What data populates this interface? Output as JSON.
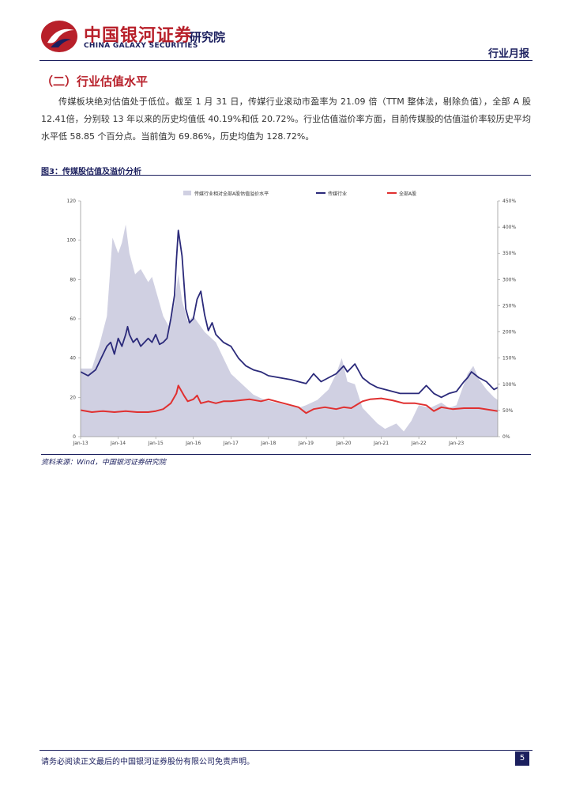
{
  "header": {
    "brand_cn": "中国银河证券",
    "brand_en": "CHINA GALAXY SECURITIES",
    "institute": "研究院",
    "report_type": "行业月报"
  },
  "section": {
    "title": "（二）行业估值水平",
    "paragraph": "传媒板块绝对估值处于低位。截至 1 月 31 日，传媒行业滚动市盈率为 21.09 倍（TTM 整体法，剔除负值），全部 A 股 12.41倍，分别较 13 年以来的历史均值低 40.19%和低 20.72%。行业估值溢价率方面，目前传媒股的估值溢价率较历史平均水平低 58.85 个百分点。当前值为 69.86%，历史均值为 128.72%。"
  },
  "figure": {
    "title": "图3：传媒股估值及溢价分析",
    "source": "资料来源：Wind，中国银河证券研究院"
  },
  "chart_data": {
    "type": "line",
    "title": "",
    "legend": [
      "传媒行业相对全部A股估值溢价水平",
      "传媒行业",
      "全部A股"
    ],
    "x_tick_labels": [
      "Jan-13",
      "Jan-14",
      "Jan-15",
      "Jan-16",
      "Jan-17",
      "Jan-18",
      "Jan-19",
      "Jan-20",
      "Jan-21",
      "Jan-22",
      "Jan-23"
    ],
    "left_axis": {
      "range": [
        0,
        120
      ],
      "ticks": [
        "0",
        "20",
        "40",
        "60",
        "80",
        "100",
        "120"
      ]
    },
    "right_axis": {
      "range": [
        0,
        450
      ],
      "ticks": [
        "0%",
        "50%",
        "100%",
        "150%",
        "200%",
        "250%",
        "300%",
        "350%",
        "400%",
        "450%"
      ]
    },
    "x_range": [
      2013.0,
      2024.1
    ],
    "series": [
      {
        "name": "传媒行业相对全部A股估值溢价水平",
        "axis": "right",
        "style": "area",
        "color": "#d0d0e2",
        "points": [
          [
            2013.0,
            130
          ],
          [
            2013.3,
            130
          ],
          [
            2013.5,
            175
          ],
          [
            2013.7,
            230
          ],
          [
            2013.85,
            380
          ],
          [
            2014.0,
            350
          ],
          [
            2014.1,
            370
          ],
          [
            2014.2,
            405
          ],
          [
            2014.3,
            350
          ],
          [
            2014.45,
            310
          ],
          [
            2014.6,
            320
          ],
          [
            2014.8,
            295
          ],
          [
            2014.9,
            305
          ],
          [
            2015.0,
            280
          ],
          [
            2015.2,
            230
          ],
          [
            2015.35,
            210
          ],
          [
            2015.5,
            255
          ],
          [
            2015.6,
            310
          ],
          [
            2015.7,
            260
          ],
          [
            2015.85,
            220
          ],
          [
            2016.0,
            230
          ],
          [
            2016.3,
            200
          ],
          [
            2016.6,
            180
          ],
          [
            2016.8,
            150
          ],
          [
            2017.0,
            120
          ],
          [
            2017.3,
            100
          ],
          [
            2017.6,
            80
          ],
          [
            2017.9,
            70
          ],
          [
            2018.2,
            65
          ],
          [
            2018.5,
            60
          ],
          [
            2018.8,
            55
          ],
          [
            2019.0,
            60
          ],
          [
            2019.3,
            70
          ],
          [
            2019.6,
            90
          ],
          [
            2019.8,
            120
          ],
          [
            2019.95,
            150
          ],
          [
            2020.1,
            105
          ],
          [
            2020.3,
            100
          ],
          [
            2020.5,
            55
          ],
          [
            2020.7,
            40
          ],
          [
            2020.9,
            25
          ],
          [
            2021.1,
            15
          ],
          [
            2021.4,
            25
          ],
          [
            2021.6,
            10
          ],
          [
            2021.8,
            30
          ],
          [
            2022.0,
            60
          ],
          [
            2022.3,
            55
          ],
          [
            2022.6,
            65
          ],
          [
            2022.8,
            55
          ],
          [
            2023.0,
            60
          ],
          [
            2023.15,
            90
          ],
          [
            2023.3,
            120
          ],
          [
            2023.45,
            135
          ],
          [
            2023.6,
            110
          ],
          [
            2023.8,
            90
          ],
          [
            2024.0,
            75
          ],
          [
            2024.1,
            70
          ]
        ]
      },
      {
        "name": "传媒行业",
        "axis": "left",
        "style": "line",
        "color": "#2b2a7a",
        "points": [
          [
            2013.0,
            33
          ],
          [
            2013.2,
            31
          ],
          [
            2013.4,
            34
          ],
          [
            2013.5,
            38
          ],
          [
            2013.6,
            42
          ],
          [
            2013.7,
            46
          ],
          [
            2013.8,
            48
          ],
          [
            2013.9,
            42
          ],
          [
            2014.0,
            50
          ],
          [
            2014.1,
            46
          ],
          [
            2014.2,
            52
          ],
          [
            2014.25,
            56
          ],
          [
            2014.3,
            52
          ],
          [
            2014.4,
            48
          ],
          [
            2014.5,
            50
          ],
          [
            2014.6,
            46
          ],
          [
            2014.7,
            48
          ],
          [
            2014.8,
            50
          ],
          [
            2014.9,
            48
          ],
          [
            2015.0,
            52
          ],
          [
            2015.1,
            47
          ],
          [
            2015.2,
            48
          ],
          [
            2015.3,
            50
          ],
          [
            2015.4,
            60
          ],
          [
            2015.5,
            72
          ],
          [
            2015.55,
            90
          ],
          [
            2015.6,
            105
          ],
          [
            2015.7,
            92
          ],
          [
            2015.8,
            65
          ],
          [
            2015.9,
            58
          ],
          [
            2016.0,
            60
          ],
          [
            2016.1,
            70
          ],
          [
            2016.2,
            74
          ],
          [
            2016.3,
            62
          ],
          [
            2016.4,
            54
          ],
          [
            2016.5,
            58
          ],
          [
            2016.6,
            52
          ],
          [
            2016.8,
            48
          ],
          [
            2017.0,
            46
          ],
          [
            2017.2,
            40
          ],
          [
            2017.4,
            36
          ],
          [
            2017.6,
            34
          ],
          [
            2017.8,
            33
          ],
          [
            2018.0,
            31
          ],
          [
            2018.3,
            30
          ],
          [
            2018.6,
            29
          ],
          [
            2018.8,
            28
          ],
          [
            2019.0,
            27
          ],
          [
            2019.2,
            32
          ],
          [
            2019.4,
            28
          ],
          [
            2019.6,
            30
          ],
          [
            2019.8,
            32
          ],
          [
            2020.0,
            36
          ],
          [
            2020.1,
            33
          ],
          [
            2020.3,
            37
          ],
          [
            2020.5,
            30
          ],
          [
            2020.7,
            27
          ],
          [
            2020.9,
            25
          ],
          [
            2021.1,
            24
          ],
          [
            2021.3,
            23
          ],
          [
            2021.5,
            22
          ],
          [
            2021.7,
            22
          ],
          [
            2022.0,
            22
          ],
          [
            2022.2,
            26
          ],
          [
            2022.4,
            22
          ],
          [
            2022.6,
            20
          ],
          [
            2022.8,
            22
          ],
          [
            2023.0,
            23
          ],
          [
            2023.2,
            28
          ],
          [
            2023.3,
            30
          ],
          [
            2023.4,
            33
          ],
          [
            2023.6,
            30
          ],
          [
            2023.8,
            28
          ],
          [
            2024.0,
            24
          ],
          [
            2024.1,
            25
          ]
        ]
      },
      {
        "name": "全部A股",
        "axis": "left",
        "style": "line",
        "color": "#e03030",
        "points": [
          [
            2013.0,
            13.5
          ],
          [
            2013.3,
            12.5
          ],
          [
            2013.6,
            13
          ],
          [
            2013.9,
            12.5
          ],
          [
            2014.2,
            13
          ],
          [
            2014.5,
            12.5
          ],
          [
            2014.8,
            12.5
          ],
          [
            2015.0,
            13
          ],
          [
            2015.2,
            14
          ],
          [
            2015.4,
            17
          ],
          [
            2015.55,
            22
          ],
          [
            2015.6,
            26
          ],
          [
            2015.75,
            21
          ],
          [
            2015.85,
            18
          ],
          [
            2016.0,
            19
          ],
          [
            2016.1,
            21
          ],
          [
            2016.2,
            17
          ],
          [
            2016.4,
            18
          ],
          [
            2016.6,
            17
          ],
          [
            2016.8,
            18
          ],
          [
            2017.0,
            18
          ],
          [
            2017.5,
            19
          ],
          [
            2017.8,
            18
          ],
          [
            2018.0,
            19
          ],
          [
            2018.4,
            17
          ],
          [
            2018.8,
            15
          ],
          [
            2019.0,
            12
          ],
          [
            2019.2,
            14
          ],
          [
            2019.5,
            15
          ],
          [
            2019.8,
            14
          ],
          [
            2020.0,
            15
          ],
          [
            2020.2,
            14.5
          ],
          [
            2020.5,
            18
          ],
          [
            2020.7,
            19
          ],
          [
            2021.0,
            19.5
          ],
          [
            2021.3,
            18.5
          ],
          [
            2021.6,
            17
          ],
          [
            2021.9,
            17
          ],
          [
            2022.2,
            16
          ],
          [
            2022.4,
            13
          ],
          [
            2022.6,
            15
          ],
          [
            2022.9,
            14
          ],
          [
            2023.2,
            14.5
          ],
          [
            2023.6,
            14.5
          ],
          [
            2024.1,
            13
          ]
        ]
      }
    ]
  },
  "footer": {
    "disclaimer": "请务必阅读正文最后的中国银河证券股份有限公司免责声明。",
    "page_number": "5"
  }
}
